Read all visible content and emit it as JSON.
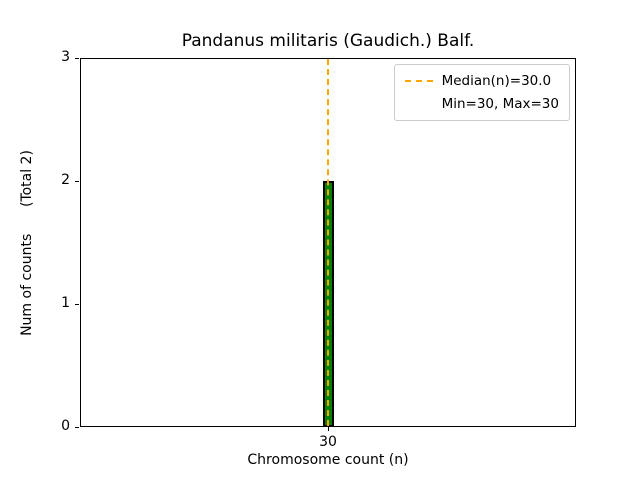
{
  "chart_data": {
    "type": "bar",
    "title": "Pandanus militaris (Gaudich.) Balf.",
    "xlabel": "Chromosome count (n)",
    "ylabel": "Num of counts      (Total 2)",
    "categories": [
      "30"
    ],
    "values": [
      2
    ],
    "total": 2,
    "median": 30.0,
    "min": 30,
    "max": 30,
    "ylim": [
      0,
      3
    ],
    "yticks": [
      0,
      1,
      2,
      3
    ],
    "xticks": [
      "30"
    ],
    "grid": false,
    "bar_color": "#008000",
    "bar_edge_color": "#000000",
    "median_line_color": "#ffa500",
    "legend": {
      "position": "upper right",
      "entries": [
        {
          "label": "Median(n)=30.0",
          "sample": "dashed-line"
        },
        {
          "label": "Min=30, Max=30",
          "sample": "none"
        }
      ]
    }
  }
}
